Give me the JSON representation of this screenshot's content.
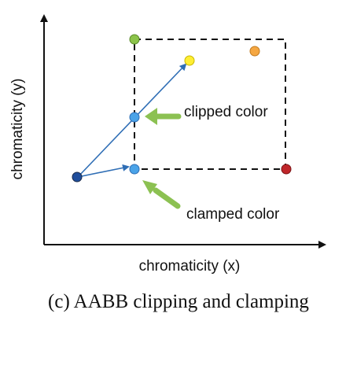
{
  "axes": {
    "x_label": "chromaticity (x)",
    "y_label": "chromaticity (y)"
  },
  "annotations": {
    "clipped": "clipped color",
    "clamped": "clamped color"
  },
  "caption": "(c) AABB clipping and clamping",
  "colors": {
    "axis": "#111111",
    "vector": "#2f6eb5",
    "pointer_arrow": "#8cc152",
    "origin_point": "#1f4e9c",
    "result_point": "#4aa3e8",
    "corner_top_left": "#8bc34a",
    "sample_yellow": "#ffee33",
    "sample_orange": "#f5a742",
    "corner_bottom_right": "#c0262a"
  }
}
